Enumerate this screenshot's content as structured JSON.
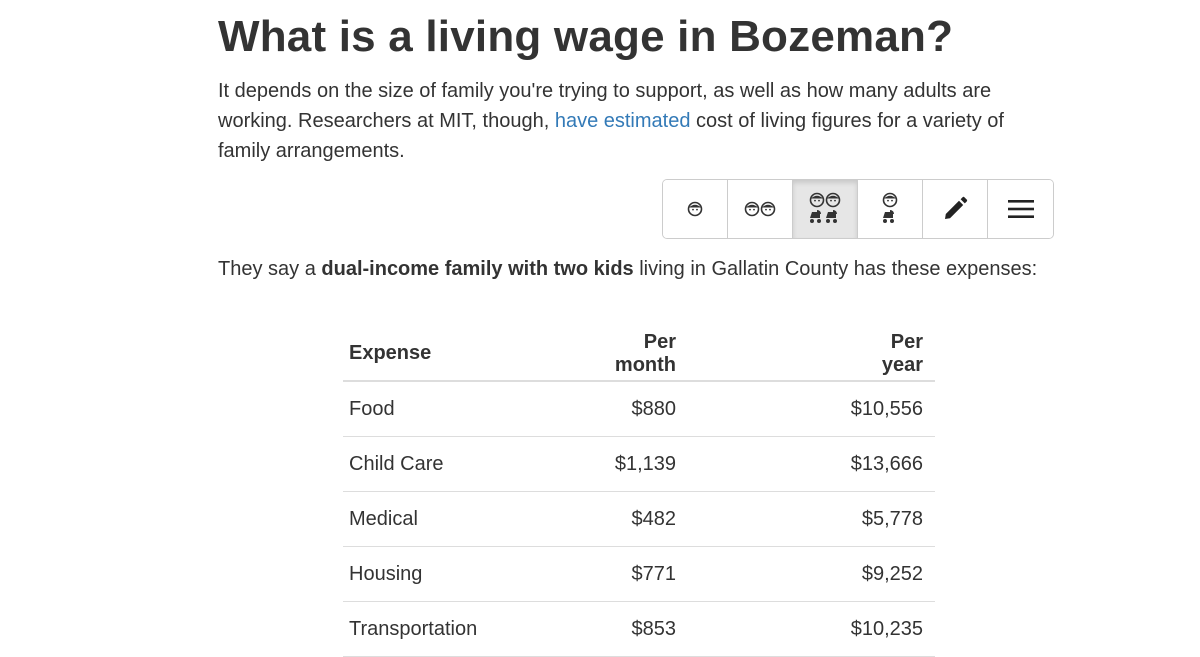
{
  "title": "What is a living wage in Bozeman?",
  "intro": {
    "before_link": "It depends on the size of family you're trying to support, as well as how many adults are working. Researchers at MIT, though, ",
    "link_text": "have estimated",
    "after_link": " cost of living figures for a variety of family arrangements."
  },
  "family_selector": {
    "buttons": [
      {
        "icon": "single-adult-icon",
        "active": false
      },
      {
        "icon": "two-adults-icon",
        "active": false
      },
      {
        "icon": "two-adults-two-kids-icon",
        "active": true
      },
      {
        "icon": "single-adult-one-kid-icon",
        "active": false
      },
      {
        "icon": "pencil-icon",
        "active": false
      },
      {
        "icon": "menu-icon",
        "active": false
      }
    ]
  },
  "sentence": {
    "before": "They say a ",
    "bold": "dual-income family with two kids",
    "after": " living in Gallatin County has these expenses:"
  },
  "table": {
    "headers": [
      "Expense",
      "Per month",
      "Per year"
    ],
    "rows": [
      [
        "Food",
        "$880",
        "$10,556"
      ],
      [
        "Child Care",
        "$1,139",
        "$13,666"
      ],
      [
        "Medical",
        "$482",
        "$5,778"
      ],
      [
        "Housing",
        "$771",
        "$9,252"
      ],
      [
        "Transportation",
        "$853",
        "$10,235"
      ]
    ]
  },
  "colors": {
    "text": "#333333",
    "link": "#337ab7",
    "border": "#cccccc",
    "active_button": "#e6e6e6"
  }
}
